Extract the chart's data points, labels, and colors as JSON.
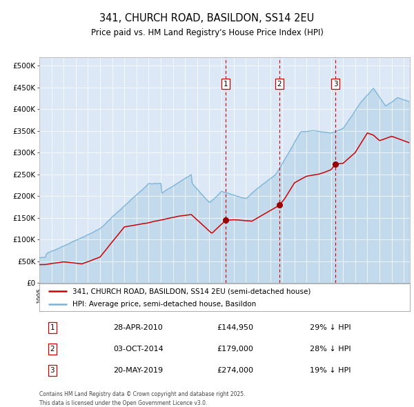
{
  "title": "341, CHURCH ROAD, BASILDON, SS14 2EU",
  "subtitle": "Price paid vs. HM Land Registry's House Price Index (HPI)",
  "background_color": "#ffffff",
  "plot_bg_color": "#dce8f5",
  "ylim": [
    0,
    520000
  ],
  "yticks": [
    0,
    50000,
    100000,
    150000,
    200000,
    250000,
    300000,
    350000,
    400000,
    450000,
    500000
  ],
  "ytick_labels": [
    "£0",
    "£50K",
    "£100K",
    "£150K",
    "£200K",
    "£250K",
    "£300K",
    "£350K",
    "£400K",
    "£450K",
    "£500K"
  ],
  "hpi_color": "#7ab4d8",
  "price_color": "#cc0000",
  "marker_color": "#990000",
  "dashed_line_color": "#cc0000",
  "sale_events": [
    {
      "label": "1",
      "date_num": 2010.32,
      "price": 144950,
      "date_str": "28-APR-2010",
      "pct": "29% ↓ HPI"
    },
    {
      "label": "2",
      "date_num": 2014.75,
      "price": 179000,
      "date_str": "03-OCT-2014",
      "pct": "28% ↓ HPI"
    },
    {
      "label": "3",
      "date_num": 2019.38,
      "price": 274000,
      "date_str": "20-MAY-2019",
      "pct": "19% ↓ HPI"
    }
  ],
  "footnote": "Contains HM Land Registry data © Crown copyright and database right 2025.\nThis data is licensed under the Open Government Licence v3.0.",
  "legend_line1": "341, CHURCH ROAD, BASILDON, SS14 2EU (semi-detached house)",
  "legend_line2": "HPI: Average price, semi-detached house, Basildon",
  "figsize": [
    6.0,
    5.9
  ],
  "dpi": 100
}
